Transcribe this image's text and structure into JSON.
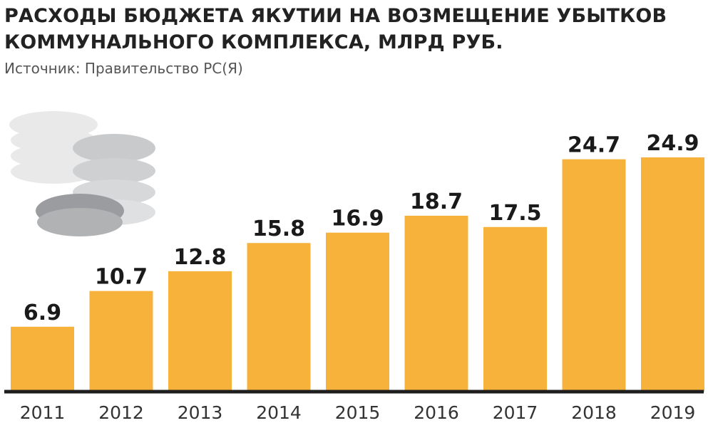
{
  "colors": {
    "bar": "#F7B23B",
    "baseline": "#1e1e1e",
    "coin_light": "#e9e9ea",
    "coin_mid": "#c9cacc",
    "coin_dark": "#9a9c9f"
  },
  "decoration": {
    "icon": "coins-stack-icon"
  },
  "chart_data": {
    "type": "bar",
    "title": "Расходы бюджета Якутии на возмещение убытков коммунального комплекса, млрд руб.",
    "subtitle": "Источник: Правительство РС(Я)",
    "categories": [
      "2011",
      "2012",
      "2013",
      "2014",
      "2015",
      "2016",
      "2017",
      "2018",
      "2019"
    ],
    "values": [
      6.9,
      10.7,
      12.8,
      15.8,
      16.9,
      18.7,
      17.5,
      24.7,
      24.9
    ],
    "value_labels": [
      "6.9",
      "10.7",
      "12.8",
      "15.8",
      "16.9",
      "18.7",
      "17.5",
      "24.7",
      "24.9"
    ],
    "ylim": [
      0,
      24.9
    ],
    "grid": false,
    "legend": "none"
  }
}
